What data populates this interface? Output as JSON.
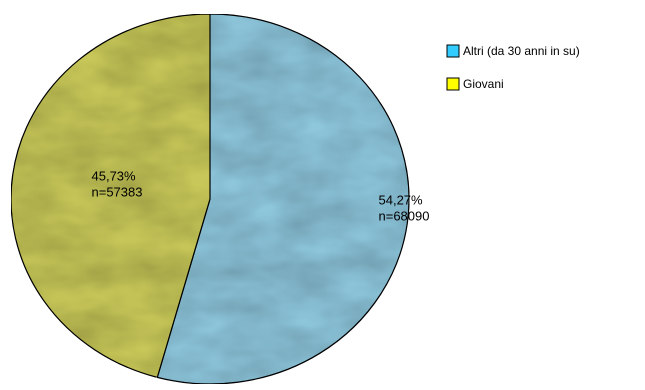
{
  "chart_data": {
    "type": "pie",
    "title": "",
    "slices": [
      {
        "name": "Altri (da 30 anni in su)",
        "percent_label": "54,27%",
        "count_label": "n=68090",
        "value": 68090,
        "percent": 54.27,
        "color": "#8ec6dc"
      },
      {
        "name": "Giovani",
        "percent_label": "45,73%",
        "count_label": "n=57383",
        "value": 57383,
        "percent": 45.73,
        "color": "#c8c85a"
      }
    ],
    "legend": {
      "placement": "top-right",
      "items": [
        {
          "label": "Altri (da 30 anni in su)",
          "color": "#33ccff"
        },
        {
          "label": "Giovani",
          "color": "#ffff00"
        }
      ]
    }
  }
}
